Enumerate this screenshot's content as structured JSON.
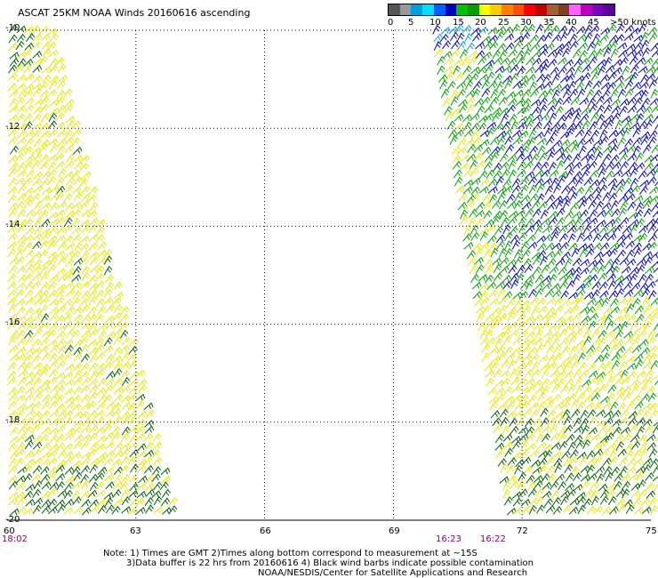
{
  "title": "ASCAT 25KM NOAA Winds 20160616 ascending",
  "colorbar": {
    "colors": [
      "#555555",
      "#999999",
      "#00a0e0",
      "#00e0ff",
      "#0060ff",
      "#0000c0",
      "#00c000",
      "#00a000",
      "#ffff00",
      "#ffcc00",
      "#ff8000",
      "#ff5000",
      "#ff0000",
      "#c00000",
      "#a06030",
      "#804020",
      "#ff60ff",
      "#c000c0",
      "#8000c0",
      "#6000a0"
    ],
    "labels": [
      "0",
      "5",
      "10",
      "15",
      "20",
      "25",
      "30",
      "35",
      "40",
      "45",
      ">50 knots"
    ]
  },
  "lat_labels": [
    "-10",
    "-12",
    "-14",
    "-16",
    "-18",
    "-20"
  ],
  "lon_labels": [
    "60",
    "63",
    "66",
    "69",
    "72",
    "75"
  ],
  "swath_times": [
    "18:02",
    "16:23",
    "16:22"
  ],
  "notes": [
    "Note: 1) Times are GMT 2)Times along bottom correspond to measurement at ~15S",
    "3)Data buffer is 22 hrs from 20160616 4) Black wind barbs indicate possible contamination",
    "NOAA/NESDIS/Center for Satellite Applications and Research"
  ],
  "map": {
    "lat_range": [
      -20,
      -10
    ],
    "lon_range": [
      60,
      75
    ],
    "barb_colors": {
      "yellow": "#e8e800",
      "green": "#00a000",
      "dark_green": "#006000",
      "blue": "#0000c8",
      "cyan": "#00a0e0",
      "black": "#000000"
    }
  }
}
